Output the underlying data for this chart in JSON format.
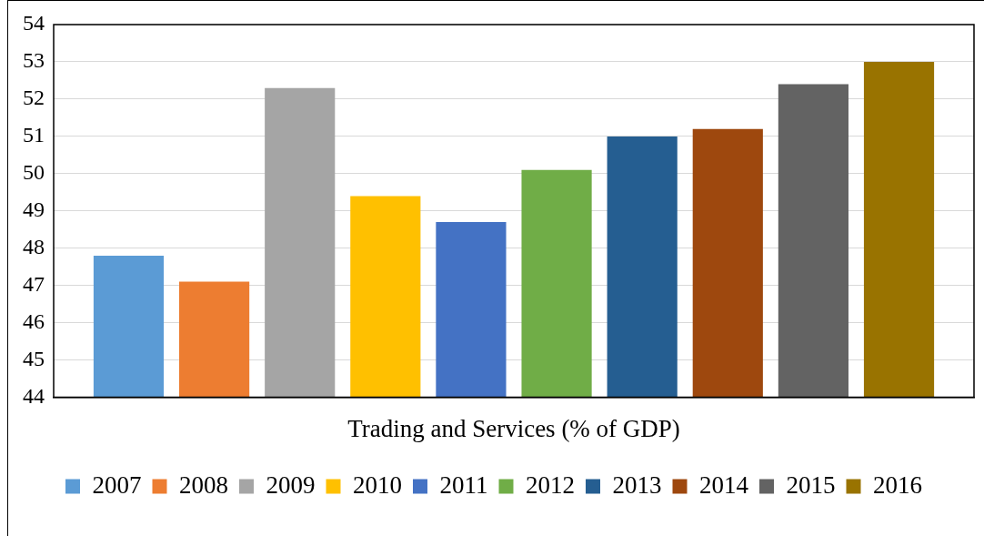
{
  "chart_data": {
    "type": "bar",
    "categories": [
      "Trading and Services (% of GDP)"
    ],
    "series": [
      {
        "name": "2007",
        "color": "#5b9bd5",
        "values": [
          47.8
        ]
      },
      {
        "name": "2008",
        "color": "#ed7d31",
        "values": [
          47.1
        ]
      },
      {
        "name": "2009",
        "color": "#a5a5a5",
        "values": [
          52.3
        ]
      },
      {
        "name": "2010",
        "color": "#ffc000",
        "values": [
          49.4
        ]
      },
      {
        "name": "2011",
        "color": "#4472c4",
        "values": [
          48.7
        ]
      },
      {
        "name": "2012",
        "color": "#70ad47",
        "values": [
          50.1
        ]
      },
      {
        "name": "2013",
        "color": "#255e91",
        "values": [
          51.0
        ]
      },
      {
        "name": "2014",
        "color": "#9e480e",
        "values": [
          51.2
        ]
      },
      {
        "name": "2015",
        "color": "#636363",
        "values": [
          52.4
        ]
      },
      {
        "name": "2016",
        "color": "#997300",
        "values": [
          53.0
        ]
      }
    ],
    "ylim": [
      44,
      54
    ],
    "yticks": [
      44,
      45,
      46,
      47,
      48,
      49,
      50,
      51,
      52,
      53,
      54
    ],
    "grid": "y",
    "legend": "bottom"
  }
}
